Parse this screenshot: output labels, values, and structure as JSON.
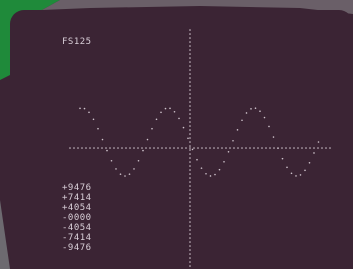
{
  "screen": {
    "label": "FS125",
    "readouts": [
      "+9476",
      "+7414",
      "+4054",
      "-0000",
      "-4054",
      "-7414",
      "-9476"
    ]
  }
}
